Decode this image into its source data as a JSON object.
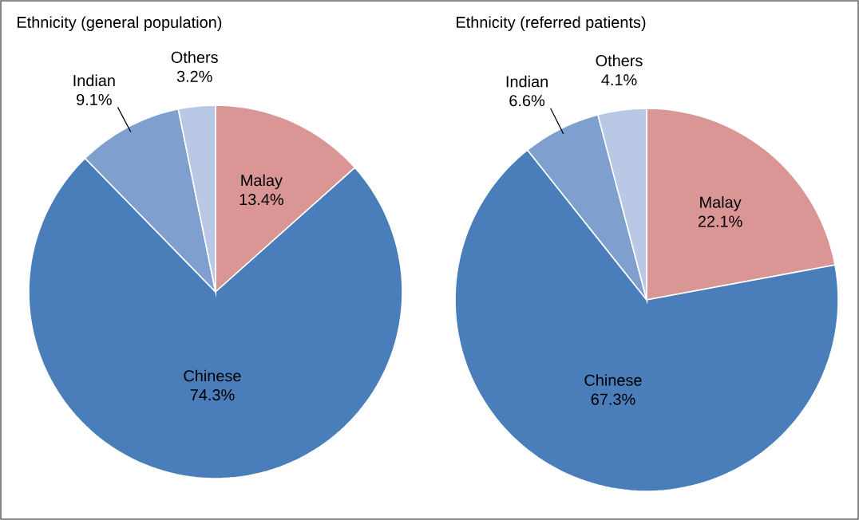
{
  "chart_data": [
    {
      "type": "pie",
      "title": "Ethnicity (general population)",
      "categories": [
        "Malay",
        "Chinese",
        "Indian",
        "Others"
      ],
      "values": [
        13.4,
        74.3,
        9.1,
        3.2
      ],
      "value_labels": [
        "13.4%",
        "74.3%",
        "9.1%",
        "3.2%"
      ],
      "colors": [
        "#d99694",
        "#4a7ebb",
        "#7f9fcf",
        "#b9c9e5"
      ]
    },
    {
      "type": "pie",
      "title": "Ethnicity (referred patients)",
      "categories": [
        "Malay",
        "Chinese",
        "Indian",
        "Others"
      ],
      "values": [
        22.1,
        67.3,
        6.6,
        4.1
      ],
      "value_labels": [
        "22.1%",
        "67.3%",
        "6.6%",
        "4.1%"
      ],
      "colors": [
        "#d99694",
        "#4a7ebb",
        "#7f9fcf",
        "#b9c9e5"
      ]
    }
  ]
}
